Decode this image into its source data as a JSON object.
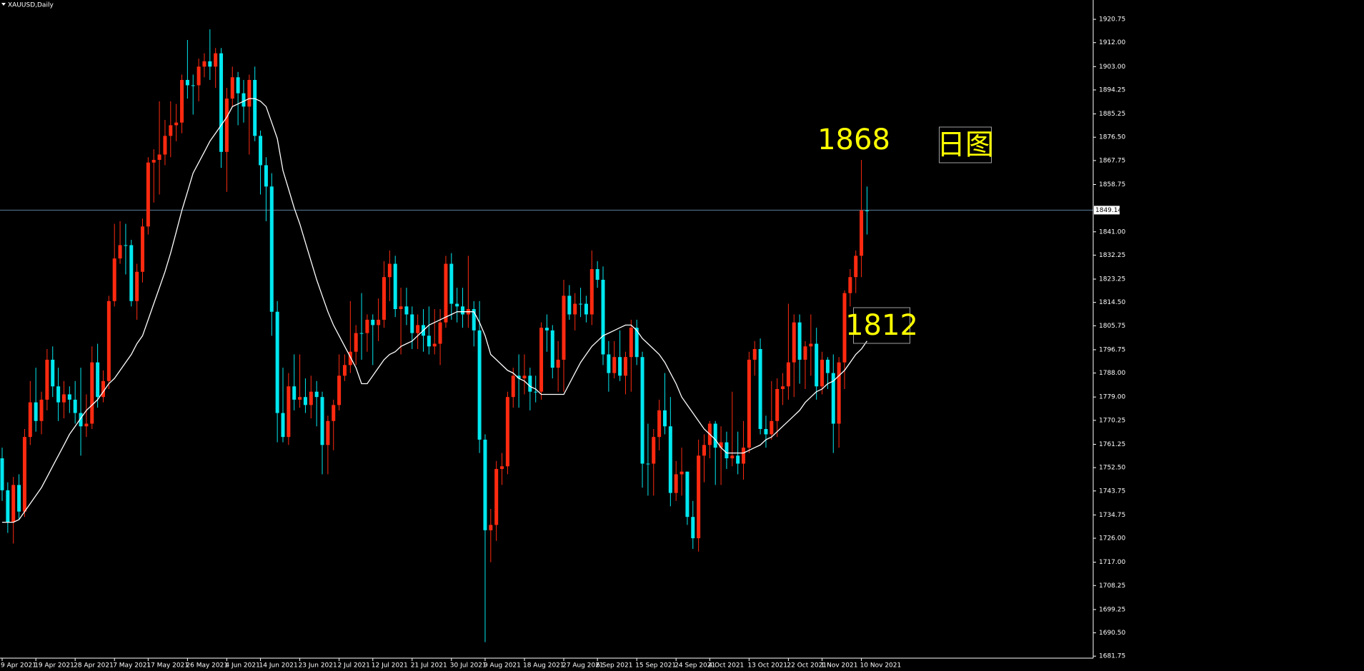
{
  "chart_data": {
    "type": "candlestick",
    "title": "XAUUSD,Daily",
    "categories": [
      "9 Apr 2021",
      null,
      null,
      null,
      null,
      null,
      "19 Apr 2021",
      null,
      null,
      null,
      null,
      null,
      null,
      "28 Apr 2021",
      null,
      null,
      null,
      null,
      null,
      null,
      "7 May 2021",
      null,
      null,
      null,
      null,
      null,
      "17 May 2021",
      null,
      null,
      null,
      null,
      null,
      null,
      "26 May 2021",
      null,
      null,
      null,
      null,
      null,
      null,
      "4 Jun 2021",
      null,
      null,
      null,
      null,
      null,
      "14 Jun 2021",
      null,
      null,
      null,
      null,
      null,
      null,
      "23 Jun 2021",
      null,
      null,
      null,
      null,
      null,
      null,
      "2 Jul 2021",
      null,
      null,
      null,
      null,
      null,
      "12 Jul 2021",
      null,
      null,
      null,
      null,
      null,
      null,
      "21 Jul 2021",
      null,
      null,
      null,
      null,
      null,
      null,
      "30 Jul 2021",
      null,
      null,
      null,
      null,
      null,
      "9 Aug 2021",
      null,
      null,
      null,
      null,
      null,
      null,
      "18 Aug 2021",
      null,
      null,
      null,
      null,
      null,
      null,
      "27 Aug 2021",
      null,
      null,
      null,
      null,
      null,
      "6 Sep 2021",
      null,
      null,
      null,
      null,
      null,
      null,
      "15 Sep 2021",
      null,
      null,
      null,
      null,
      null,
      null,
      "24 Sep 2021",
      null,
      null,
      null,
      null,
      null,
      "4 Oct 2021",
      null,
      null,
      null,
      null,
      null,
      null,
      "13 Oct 2021",
      null,
      null,
      null,
      null,
      null,
      null,
      "22 Oct 2021",
      null,
      null,
      null,
      null,
      null,
      "1 Nov 2021",
      null,
      null,
      null,
      null,
      null,
      null,
      "10 Nov 2021",
      null
    ],
    "open": [
      1756,
      1744,
      1732,
      1746,
      1736,
      1764,
      1777,
      1770,
      1778,
      1793,
      1783,
      1777,
      1780,
      1778,
      1773,
      1768,
      1769,
      1792,
      1779,
      1785,
      1815,
      1831,
      1836,
      1836,
      1815,
      1826,
      1843,
      1867,
      1868,
      1870,
      1877,
      1881,
      1882,
      1898,
      1896,
      1896,
      1903,
      1905,
      1903,
      1908,
      1871,
      1891,
      1899,
      1893,
      1888,
      1898,
      1877,
      1866,
      1858,
      1811,
      1773,
      1764,
      1783,
      1778,
      1779,
      1776,
      1781,
      1779,
      1761,
      1770,
      1776,
      1787,
      1791,
      1796,
      1803,
      1803,
      1808,
      1806,
      1808,
      1824,
      1829,
      1812,
      1813,
      1810,
      1803,
      1806,
      1802,
      1798,
      1799,
      1807,
      1829,
      1814,
      1813,
      1810,
      1812,
      1804,
      1763,
      1729,
      1731,
      1752,
      1753,
      1779,
      1787,
      1786,
      1787,
      1781,
      1781,
      1805,
      1804,
      1790,
      1793,
      1817,
      1810,
      1814,
      1814,
      1810,
      1827,
      1823,
      1795,
      1788,
      1794,
      1787,
      1794,
      1805,
      1794,
      1754,
      1754,
      1764,
      1774,
      1768,
      1743,
      1750,
      1751,
      1734,
      1726,
      1757,
      1761,
      1769,
      1760,
      1762,
      1756,
      1757,
      1754,
      1760,
      1793,
      1797,
      1767,
      1765,
      1770,
      1782,
      1783,
      1792,
      1807,
      1793,
      1798,
      1799,
      1783,
      1793,
      1788,
      1769,
      1792,
      1818,
      1824,
      1832,
      1849
    ],
    "high": [
      1760,
      1747,
      1749,
      1750,
      1767,
      1785,
      1790,
      1781,
      1797,
      1798,
      1790,
      1785,
      1783,
      1785,
      1790,
      1780,
      1798,
      1799,
      1789,
      1817,
      1844,
      1845,
      1844,
      1838,
      1829,
      1846,
      1869,
      1872,
      1890,
      1883,
      1890,
      1889,
      1900,
      1913,
      1900,
      1906,
      1908,
      1917,
      1910,
      1910,
      1895,
      1903,
      1901,
      1898,
      1900,
      1903,
      1879,
      1869,
      1863,
      1815,
      1790,
      1788,
      1795,
      1795,
      1786,
      1787,
      1785,
      1781,
      1772,
      1778,
      1795,
      1795,
      1815,
      1806,
      1818,
      1810,
      1810,
      1816,
      1830,
      1834,
      1832,
      1820,
      1820,
      1813,
      1810,
      1812,
      1813,
      1812,
      1812,
      1832,
      1833,
      1820,
      1820,
      1832,
      1815,
      1815,
      1765,
      1737,
      1755,
      1758,
      1781,
      1790,
      1795,
      1795,
      1790,
      1787,
      1807,
      1810,
      1806,
      1800,
      1823,
      1821,
      1818,
      1820,
      1817,
      1834,
      1830,
      1828,
      1800,
      1800,
      1804,
      1796,
      1808,
      1808,
      1796,
      1769,
      1767,
      1778,
      1788,
      1779,
      1755,
      1760,
      1751,
      1740,
      1763,
      1765,
      1770,
      1770,
      1768,
      1766,
      1781,
      1766,
      1770,
      1796,
      1800,
      1801,
      1772,
      1785,
      1786,
      1788,
      1814,
      1810,
      1810,
      1800,
      1810,
      1805,
      1796,
      1794,
      1795,
      1794,
      1819,
      1827,
      1834,
      1868,
      1858
    ],
    "low": [
      1740,
      1728,
      1724,
      1733,
      1734,
      1761,
      1766,
      1765,
      1774,
      1779,
      1770,
      1771,
      1773,
      1769,
      1757,
      1764,
      1767,
      1775,
      1777,
      1782,
      1813,
      1829,
      1825,
      1813,
      1808,
      1822,
      1840,
      1852,
      1855,
      1866,
      1869,
      1875,
      1878,
      1891,
      1885,
      1890,
      1899,
      1898,
      1895,
      1865,
      1856,
      1888,
      1881,
      1882,
      1870,
      1875,
      1855,
      1845,
      1802,
      1762,
      1762,
      1761,
      1774,
      1775,
      1773,
      1771,
      1768,
      1750,
      1750,
      1759,
      1774,
      1785,
      1788,
      1791,
      1793,
      1796,
      1791,
      1800,
      1805,
      1815,
      1809,
      1795,
      1806,
      1797,
      1797,
      1796,
      1795,
      1795,
      1791,
      1805,
      1808,
      1807,
      1805,
      1805,
      1798,
      1758,
      1687,
      1717,
      1725,
      1746,
      1750,
      1775,
      1775,
      1780,
      1774,
      1777,
      1778,
      1796,
      1786,
      1781,
      1781,
      1808,
      1804,
      1809,
      1807,
      1806,
      1820,
      1791,
      1781,
      1786,
      1785,
      1780,
      1781,
      1791,
      1745,
      1742,
      1742,
      1759,
      1765,
      1738,
      1740,
      1742,
      1731,
      1722,
      1721,
      1747,
      1756,
      1746,
      1746,
      1752,
      1753,
      1750,
      1748,
      1758,
      1787,
      1765,
      1760,
      1763,
      1764,
      1776,
      1778,
      1779,
      1784,
      1782,
      1787,
      1778,
      1780,
      1782,
      1758,
      1760,
      1782,
      1813,
      1818,
      1824,
      1840
    ],
    "close": [
      1744,
      1732,
      1746,
      1736,
      1764,
      1777,
      1770,
      1778,
      1793,
      1783,
      1777,
      1780,
      1778,
      1773,
      1768,
      1769,
      1792,
      1779,
      1785,
      1815,
      1831,
      1836,
      1836,
      1815,
      1826,
      1843,
      1867,
      1868,
      1870,
      1877,
      1881,
      1882,
      1898,
      1896,
      1896,
      1903,
      1905,
      1903,
      1908,
      1871,
      1891,
      1899,
      1893,
      1888,
      1898,
      1877,
      1866,
      1858,
      1811,
      1773,
      1764,
      1783,
      1778,
      1779,
      1776,
      1781,
      1779,
      1761,
      1770,
      1776,
      1787,
      1791,
      1796,
      1803,
      1803,
      1808,
      1806,
      1808,
      1824,
      1829,
      1812,
      1813,
      1810,
      1803,
      1806,
      1802,
      1798,
      1799,
      1807,
      1829,
      1814,
      1813,
      1810,
      1812,
      1804,
      1763,
      1729,
      1731,
      1752,
      1753,
      1779,
      1787,
      1786,
      1787,
      1781,
      1781,
      1805,
      1804,
      1790,
      1793,
      1817,
      1810,
      1814,
      1814,
      1810,
      1827,
      1823,
      1795,
      1788,
      1794,
      1787,
      1794,
      1805,
      1794,
      1754,
      1754,
      1764,
      1774,
      1768,
      1743,
      1750,
      1751,
      1734,
      1726,
      1757,
      1761,
      1769,
      1760,
      1762,
      1756,
      1757,
      1754,
      1760,
      1793,
      1797,
      1767,
      1765,
      1770,
      1782,
      1783,
      1792,
      1807,
      1793,
      1798,
      1799,
      1783,
      1793,
      1788,
      1769,
      1792,
      1818,
      1824,
      1832,
      1849,
      1849
    ],
    "ma": [
      1732,
      1732,
      1732,
      1733,
      1736,
      1739,
      1742,
      1745,
      1749,
      1753,
      1757,
      1761,
      1765,
      1768,
      1771,
      1774,
      1776,
      1778,
      1781,
      1784,
      1786,
      1789,
      1792,
      1795,
      1799,
      1802,
      1808,
      1814,
      1820,
      1826,
      1833,
      1841,
      1849,
      1856,
      1863,
      1867,
      1871,
      1875,
      1878,
      1881,
      1884,
      1888,
      1889,
      1890,
      1891,
      1891,
      1890,
      1888,
      1882,
      1876,
      1864,
      1857,
      1850,
      1844,
      1837,
      1830,
      1823,
      1817,
      1811,
      1806,
      1802,
      1798,
      1794,
      1790,
      1784,
      1784,
      1787,
      1790,
      1793,
      1795,
      1796,
      1798,
      1799,
      1800,
      1802,
      1804,
      1806,
      1807,
      1808,
      1809,
      1810,
      1811,
      1811,
      1811,
      1811,
      1807,
      1802,
      1795,
      1793,
      1791,
      1789,
      1788,
      1786,
      1785,
      1783,
      1782,
      1780,
      1780,
      1780,
      1780,
      1780,
      1784,
      1788,
      1792,
      1795,
      1798,
      1800,
      1802,
      1803,
      1804,
      1805,
      1806,
      1806,
      1804,
      1801,
      1799,
      1797,
      1795,
      1792,
      1788,
      1784,
      1779,
      1776,
      1773,
      1770,
      1767,
      1765,
      1763,
      1760,
      1758,
      1758,
      1758,
      1758,
      1759,
      1760,
      1761,
      1763,
      1764,
      1766,
      1768,
      1770,
      1772,
      1774,
      1777,
      1779,
      1781,
      1782,
      1784,
      1785,
      1787,
      1789,
      1792,
      1795,
      1797,
      1800
    ],
    "up_color": "#ff2a10",
    "down_color": "#00e8f0",
    "ma_color": "#ffffff",
    "current_price": 1849.14,
    "price_line_color": "#5f7f9c",
    "ylim": [
      1681,
      1928
    ],
    "yticks": [
      {
        "value": 1920.75,
        "label": "1920.75"
      },
      {
        "value": 1912,
        "label": "1912.00"
      },
      {
        "value": 1903,
        "label": "1903.00"
      },
      {
        "value": 1894.25,
        "label": "1894.25"
      },
      {
        "value": 1885.25,
        "label": "1885.25"
      },
      {
        "value": 1876.5,
        "label": "1876.50"
      },
      {
        "value": 1867.75,
        "label": "1867.75"
      },
      {
        "value": 1858.75,
        "label": "1858.75"
      },
      {
        "value": 1841,
        "label": "1841.00"
      },
      {
        "value": 1832.25,
        "label": "1832.25"
      },
      {
        "value": 1823.25,
        "label": "1823.25"
      },
      {
        "value": 1814.5,
        "label": "1814.50"
      },
      {
        "value": 1805.75,
        "label": "1805.75"
      },
      {
        "value": 1796.75,
        "label": "1796.75"
      },
      {
        "value": 1788,
        "label": "1788.00"
      },
      {
        "value": 1779,
        "label": "1779.00"
      },
      {
        "value": 1770.25,
        "label": "1770.25"
      },
      {
        "value": 1761.25,
        "label": "1761.25"
      },
      {
        "value": 1752.5,
        "label": "1752.50"
      },
      {
        "value": 1743.75,
        "label": "1743.75"
      },
      {
        "value": 1734.75,
        "label": "1734.75"
      },
      {
        "value": 1726,
        "label": "1726.00"
      },
      {
        "value": 1717,
        "label": "1717.00"
      },
      {
        "value": 1708.25,
        "label": "1708.25"
      },
      {
        "value": 1699.25,
        "label": "1699.25"
      },
      {
        "value": 1690.5,
        "label": "1690.50"
      },
      {
        "value": 1681.75,
        "label": "1681.75"
      }
    ],
    "annotations": [
      {
        "text": "1868"
      },
      {
        "text": "1812"
      },
      {
        "text": "日图"
      }
    ]
  }
}
